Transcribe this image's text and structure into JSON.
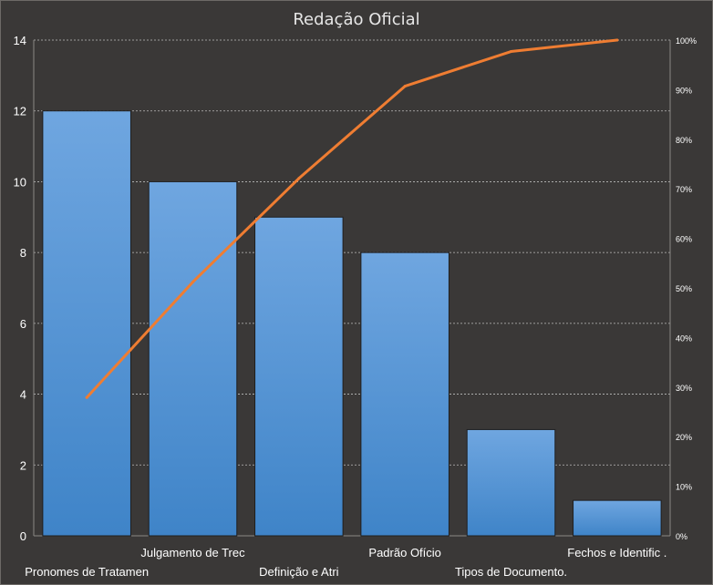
{
  "chart_data": {
    "type": "bar",
    "title": "Redação Oficial",
    "categories": [
      "Pronomes  de Tratamen",
      "Julgamento de Trec",
      "Definição e Atri",
      "Padrão Ofício",
      "Tipos de Documento.",
      "Fechos e Identific ."
    ],
    "values": [
      12,
      10,
      9,
      8,
      3,
      1
    ],
    "ylim": [
      0,
      14
    ],
    "yticks": [
      "0",
      "2",
      "4",
      "6",
      "8",
      "10",
      "12",
      "14"
    ],
    "cumulative_percent": [
      27.9,
      51.2,
      72.1,
      90.7,
      97.7,
      100
    ],
    "y2lim": [
      0,
      100
    ],
    "y2ticks": [
      "0%",
      "10%",
      "20%",
      "30%",
      "40%",
      "50%",
      "60%",
      "70%",
      "80%",
      "90%",
      "100%"
    ],
    "grid": true,
    "legend": "none",
    "colors": {
      "background": "#3a3837",
      "bar_top": "#6fa6e0",
      "bar_bottom": "#3f84c8",
      "line": "#ef7d32",
      "grid": "#bdbdbd",
      "text": "#ffffff",
      "title": "#e6e6e6"
    }
  }
}
